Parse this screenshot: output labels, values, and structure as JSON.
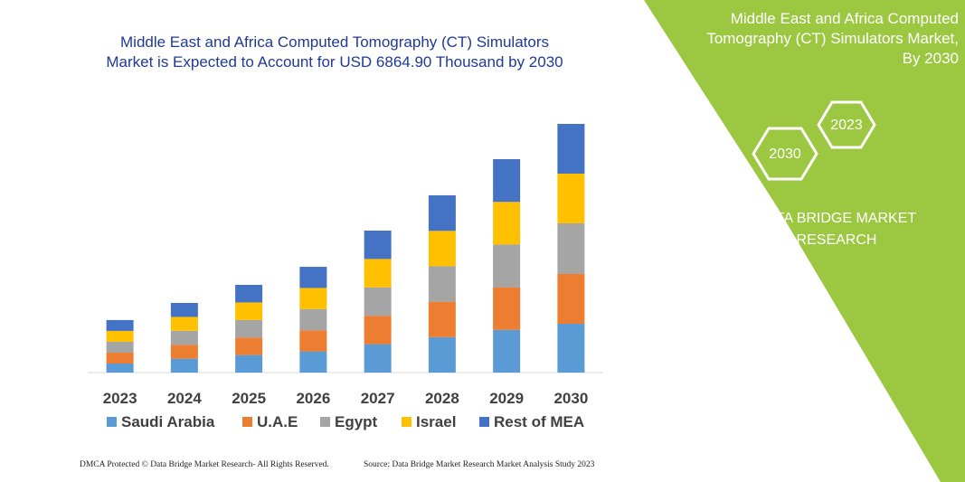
{
  "chart_data": {
    "type": "stacked_bar",
    "title": "Middle East and Africa Computed Tomography (CT) Simulators Market is Expected to Account for USD 6864.90 Thousand by 2030",
    "categories": [
      "2023",
      "2024",
      "2025",
      "2026",
      "2027",
      "2028",
      "2029",
      "2030"
    ],
    "series": [
      {
        "name": "Saudi Arabia",
        "color": "#5b9bd5",
        "values": [
          250,
          384,
          484,
          584,
          784,
          978,
          1178,
          1348
        ]
      },
      {
        "name": "U.A.E",
        "color": "#ed7d31",
        "values": [
          300,
          384,
          484,
          584,
          784,
          978,
          1178,
          1373
        ]
      },
      {
        "name": "Egypt",
        "color": "#a5a5a5",
        "values": [
          300,
          384,
          484,
          584,
          784,
          978,
          1178,
          1398
        ]
      },
      {
        "name": "Israel",
        "color": "#ffc000",
        "values": [
          300,
          384,
          484,
          584,
          784,
          978,
          1178,
          1373
        ]
      },
      {
        "name": "Rest of MEA",
        "color": "#4472c4",
        "values": [
          300,
          386,
          485,
          584,
          783,
          980,
          1179,
          1373
        ]
      }
    ]
  },
  "side_panel": {
    "title": "Middle East and Africa Computed Tomography (CT) Simulators Market, By 2030",
    "hexagons": [
      "2023",
      "2030"
    ],
    "brand": "DATA BRIDGE MARKET RESEARCH"
  },
  "footer": {
    "left": "DMCA Protected © Data Bridge Market Research- All Rights Reserved.",
    "right": "Source: Data Bridge Market Research Market Analysis Study 2023"
  }
}
